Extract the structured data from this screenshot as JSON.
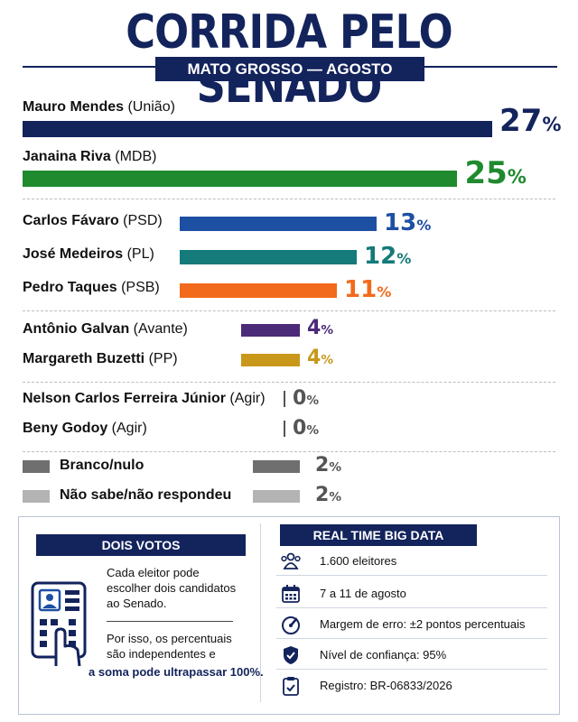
{
  "title": "CORRIDA PELO SENADO",
  "subtitle": "MATO GROSSO — AGOSTO",
  "chart_data": {
    "type": "bar",
    "orientation": "horizontal",
    "title": "CORRIDA PELO SENADO",
    "subtitle": "MATO GROSSO — AGOSTO",
    "unit": "%",
    "categories": [
      {
        "name": "Mauro Mendes",
        "party": "(União)",
        "value": 27,
        "color": "#13235c"
      },
      {
        "name": "Janaina Riva",
        "party": "(MDB)",
        "value": 25,
        "color": "#1f8a2e"
      },
      {
        "name": "Carlos Fávaro",
        "party": "(PSD)",
        "value": 13,
        "color": "#1d4fa3"
      },
      {
        "name": "José Medeiros",
        "party": "(PL)",
        "value": 12,
        "color": "#147a7a"
      },
      {
        "name": "Pedro Taques",
        "party": "(PSB)",
        "value": 11,
        "color": "#f26a1b"
      },
      {
        "name": "Antônio Galvan",
        "party": "(Avante)",
        "value": 4,
        "color": "#4b2a78"
      },
      {
        "name": "Margareth Buzetti",
        "party": "(PP)",
        "value": 4,
        "color": "#c9981a"
      },
      {
        "name": "Nelson Carlos Ferreira Júnior",
        "party": "(Agir)",
        "value": 0,
        "color": "#444444"
      },
      {
        "name": "Beny Godoy",
        "party": "(Agir)",
        "value": 0,
        "color": "#444444"
      }
    ],
    "other": [
      {
        "label": "Branco/nulo",
        "value": 2,
        "color": "#6f6f6f"
      },
      {
        "label": "Não sabe/não respondeu",
        "value": 2,
        "color": "#b3b3b3"
      }
    ]
  },
  "dois_votos": {
    "heading": "DOIS VOTOS",
    "text1": [
      "Cada eleitor pode",
      "escolher dois candidatos",
      "ao Senado."
    ],
    "text2": [
      "Por isso, os percentuais",
      "são independentes e"
    ],
    "highlight": "a soma pode ultrapassar 100%."
  },
  "real_time": {
    "heading": "REAL TIME BIG DATA",
    "items": [
      {
        "icon": "people-icon",
        "text": "1.600 eleitores"
      },
      {
        "icon": "calendar-icon",
        "text": "7 a 11 de agosto"
      },
      {
        "icon": "gauge-icon",
        "text": "Margem de erro: ±2 pontos percentuais"
      },
      {
        "icon": "shield-icon",
        "text": "Nível de confiança: 95%"
      },
      {
        "icon": "clipboard-icon",
        "text": "Registro: BR-06833/2026"
      }
    ]
  }
}
